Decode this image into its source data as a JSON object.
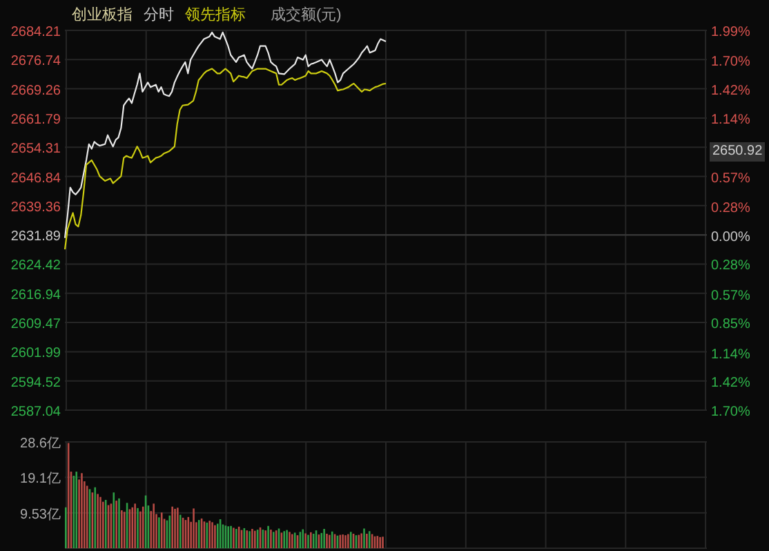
{
  "chart_data": [
    {
      "type": "line",
      "title": "创业板指",
      "subtitle": "分时",
      "grid": true,
      "tick_labels": "y",
      "categories": [
        null,
        null,
        null,
        null,
        null,
        null,
        null,
        null,
        null,
        null,
        null,
        null,
        null,
        null,
        null,
        null,
        null,
        null,
        null,
        null,
        null,
        null,
        null,
        null,
        null,
        null,
        null,
        null,
        null,
        null,
        null,
        null,
        null,
        null,
        null,
        null,
        null,
        null,
        null,
        null,
        null,
        null,
        null,
        null,
        null,
        null,
        null,
        null,
        null,
        null,
        null,
        null,
        null,
        null,
        null,
        null,
        null,
        null,
        null,
        null,
        null,
        null,
        null,
        null,
        null,
        null,
        null,
        null,
        null,
        null,
        null,
        null,
        null,
        null,
        null,
        null,
        null,
        null,
        null,
        null,
        null,
        null,
        null,
        null,
        null,
        null,
        null,
        null,
        null,
        null,
        null,
        null,
        null,
        null,
        null,
        null,
        null,
        null,
        null,
        null,
        null,
        null,
        null,
        null,
        null,
        null,
        null,
        null,
        null,
        null,
        null,
        null,
        null,
        null,
        null,
        null,
        null,
        null,
        null,
        null,
        null,
        null,
        null,
        null,
        null,
        null,
        null,
        null,
        null,
        null,
        null,
        null,
        null,
        null,
        null,
        null,
        null,
        null,
        null,
        null,
        null,
        null,
        null,
        null,
        null,
        null,
        null,
        null,
        null,
        null,
        null,
        null,
        null,
        null,
        null,
        null,
        null,
        null,
        null,
        null,
        null,
        null,
        null,
        null,
        null,
        null,
        null,
        null,
        null,
        null,
        null,
        null,
        null,
        null,
        null,
        null,
        null,
        null,
        null,
        null,
        null,
        null,
        null,
        null,
        null,
        null,
        null,
        null,
        null,
        null,
        null,
        null,
        null,
        null,
        null,
        null,
        null,
        null,
        null,
        null,
        null,
        null,
        null,
        null,
        null,
        null,
        null,
        null,
        null,
        null,
        null,
        null,
        null,
        null,
        null,
        null,
        null,
        null,
        null,
        null,
        null,
        null,
        null,
        null,
        null,
        null,
        null,
        null,
        null,
        null,
        null,
        null,
        null,
        null,
        null,
        null,
        null,
        null,
        null,
        null,
        null
      ],
      "ylim": [
        2587.04,
        2684.21
      ],
      "yticks": [
        2684.21,
        2676.74,
        2669.26,
        2661.79,
        2654.31,
        2646.84,
        2639.36,
        2631.89,
        2624.42,
        2616.94,
        2609.47,
        2601.99,
        2594.52,
        2587.04
      ],
      "y2lim": [
        -1.7,
        1.99
      ],
      "y2ticks": [
        {
          "value": 1.99,
          "label": "1.99%"
        },
        {
          "value": 1.7,
          "label": "1.70%"
        },
        {
          "value": 1.42,
          "label": "1.42%"
        },
        {
          "value": 1.14,
          "label": "1.14%"
        },
        {
          "value": 0.57,
          "label": "0.57%"
        },
        {
          "value": 0.28,
          "label": "0.28%"
        },
        {
          "value": 0,
          "label": "0.00%"
        },
        {
          "value": -0.28,
          "label": "0.28%"
        },
        {
          "value": -0.57,
          "label": "0.57%"
        },
        {
          "value": -0.85,
          "label": "0.85%"
        },
        {
          "value": -1.14,
          "label": "1.14%"
        },
        {
          "value": -1.42,
          "label": "1.42%"
        },
        {
          "value": -1.7,
          "label": "1.70%"
        }
      ],
      "ref_lines": [
        {
          "axis": "y",
          "value": 2631.89,
          "color": "#3a3a3a"
        }
      ],
      "annotations": [
        "成交额(元)",
        "2650.92"
      ],
      "series": [
        {
          "color": "#e8e8e8",
          "values": [
            2631.1,
            2636.9,
            2644.0,
            2642.8,
            2642.2,
            2643.0,
            2644.0,
            2647.5,
            2651.0,
            2655.1,
            2653.9,
            2655.7,
            2655.1,
            2654.7,
            2654.9,
            2655.1,
            2657.4,
            2655.8,
            2654.5,
            2656.2,
            2656.8,
            2659.2,
            2665.0,
            2666.0,
            2666.8,
            2665.6,
            2668.0,
            2670.3,
            2673.2,
            2668.5,
            2669.7,
            2670.9,
            2669.7,
            2670.0,
            2670.3,
            2668.5,
            2669.7,
            2667.9,
            2667.6,
            2667.4,
            2668.5,
            2670.9,
            2672.4,
            2673.8,
            2675.0,
            2676.1,
            2673.2,
            2676.7,
            2677.9,
            2679.1,
            2680.2,
            2681.1,
            2682.0,
            2682.3,
            2682.6,
            2683.7,
            2682.6,
            2682.3,
            2682.0,
            2683.7,
            2682.0,
            2680.2,
            2677.9,
            2677.0,
            2676.1,
            2677.3,
            2677.6,
            2677.9,
            2676.1,
            2675.2,
            2674.4,
            2676.1,
            2677.9,
            2680.2,
            2680.2,
            2680.2,
            2678.5,
            2676.1,
            2675.5,
            2675.0,
            2673.2,
            2673.1,
            2673.0,
            2673.7,
            2674.4,
            2675.0,
            2675.6,
            2677.3,
            2677.0,
            2676.7,
            2677.9,
            2675.0,
            2675.6,
            2675.8,
            2676.1,
            2676.4,
            2676.7,
            2675.8,
            2675.0,
            2676.7,
            2675.0,
            2673.2,
            2670.9,
            2671.5,
            2673.2,
            2673.8,
            2674.4,
            2675.0,
            2675.6,
            2676.4,
            2677.3,
            2678.5,
            2679.3,
            2680.2,
            2678.5,
            2678.8,
            2679.1,
            2680.8,
            2682.0,
            2681.7,
            2681.4,
            null,
            null,
            null,
            null,
            null,
            null,
            null,
            null,
            null,
            null,
            null,
            null,
            null,
            null,
            null,
            null,
            null,
            null,
            null,
            null,
            null,
            null,
            null,
            null,
            null,
            null,
            null,
            null,
            null,
            null,
            null,
            null,
            null,
            null,
            null,
            null,
            null,
            null,
            null,
            null,
            null,
            null,
            null,
            null,
            null,
            null,
            null,
            null,
            null,
            null,
            null,
            null,
            null,
            null,
            null,
            null,
            null,
            null,
            null,
            null,
            null,
            null,
            null,
            null,
            null,
            null,
            null,
            null,
            null,
            null,
            null,
            null,
            null,
            null,
            null,
            null,
            null,
            null,
            null,
            null,
            null,
            null,
            null,
            null,
            null,
            null,
            null,
            null,
            null,
            null,
            null,
            null,
            null,
            null,
            null,
            null,
            null,
            null,
            null,
            null,
            null,
            null,
            null,
            null,
            null,
            null,
            null,
            null,
            null,
            null,
            null,
            null,
            null,
            null,
            null,
            null,
            null,
            null,
            null,
            null
          ]
        },
        {
          "name": "领先指标",
          "color": "#cccc10",
          "values": [
            2628.2,
            2633.4,
            2635.5,
            2637.5,
            2634.6,
            2634.0,
            2636.9,
            2642.8,
            2649.8,
            2650.4,
            2651.0,
            2649.8,
            2648.6,
            2646.9,
            2646.3,
            2645.7,
            2646.0,
            2646.3,
            2645.1,
            2645.7,
            2646.3,
            2646.9,
            2651.6,
            2652.1,
            2651.8,
            2651.6,
            2653.0,
            2654.5,
            2653.3,
            2651.6,
            2651.8,
            2652.1,
            2650.4,
            2651.0,
            2651.6,
            2651.8,
            2652.1,
            2652.7,
            2653.0,
            2653.3,
            2653.9,
            2654.5,
            2660.3,
            2663.9,
            2665.0,
            2665.1,
            2665.2,
            2665.7,
            2666.2,
            2668.5,
            2671.5,
            2672.3,
            2673.2,
            2673.8,
            2674.1,
            2674.4,
            2673.8,
            2673.2,
            2673.2,
            2673.8,
            2674.4,
            2673.8,
            2673.2,
            2671.1,
            2671.8,
            2672.6,
            2672.4,
            2672.3,
            2672.0,
            2672.9,
            2673.8,
            2674.1,
            2674.4,
            2674.4,
            2674.4,
            2674.4,
            2674.1,
            2673.8,
            2673.5,
            2673.2,
            2670.3,
            2670.3,
            2670.9,
            2671.5,
            2671.8,
            2672.0,
            2671.5,
            2671.8,
            2672.0,
            2672.3,
            2672.6,
            2673.8,
            2673.2,
            2673.2,
            2673.2,
            2673.5,
            2673.8,
            2673.5,
            2673.2,
            2672.6,
            2671.5,
            2670.3,
            2668.8,
            2669.0,
            2669.1,
            2669.4,
            2669.7,
            2670.2,
            2670.6,
            2669.9,
            2669.2,
            2668.5,
            2669.1,
            2669.0,
            2668.8,
            2669.3,
            2669.7,
            2669.9,
            2670.2,
            2670.5,
            2670.6,
            null,
            null,
            null,
            null,
            null,
            null,
            null,
            null,
            null,
            null,
            null,
            null,
            null,
            null,
            null,
            null,
            null,
            null,
            null,
            null,
            null,
            null,
            null,
            null,
            null,
            null,
            null,
            null,
            null,
            null,
            null,
            null,
            null,
            null,
            null,
            null,
            null,
            null,
            null,
            null,
            null,
            null,
            null,
            null,
            null,
            null,
            null,
            null,
            null,
            null,
            null,
            null,
            null,
            null,
            null,
            null,
            null,
            null,
            null,
            null,
            null,
            null,
            null,
            null,
            null,
            null,
            null,
            null,
            null,
            null,
            null,
            null,
            null,
            null,
            null,
            null,
            null,
            null,
            null,
            null,
            null,
            null,
            null,
            null,
            null,
            null,
            null,
            null,
            null,
            null,
            null,
            null,
            null,
            null,
            null,
            null,
            null,
            null,
            null,
            null,
            null,
            null,
            null,
            null,
            null,
            null,
            null,
            null,
            null,
            null,
            null,
            null,
            null,
            null,
            null,
            null,
            null,
            null,
            null,
            null
          ]
        }
      ]
    },
    {
      "type": "bar",
      "grid": true,
      "tick_labels": "y",
      "categories": [
        null,
        null,
        null,
        null,
        null,
        null,
        null,
        null,
        null,
        null,
        null,
        null,
        null,
        null,
        null,
        null,
        null,
        null,
        null,
        null,
        null,
        null,
        null,
        null,
        null,
        null,
        null,
        null,
        null,
        null,
        null,
        null,
        null,
        null,
        null,
        null,
        null,
        null,
        null,
        null,
        null,
        null,
        null,
        null,
        null,
        null,
        null,
        null,
        null,
        null,
        null,
        null,
        null,
        null,
        null,
        null,
        null,
        null,
        null,
        null,
        null,
        null,
        null,
        null,
        null,
        null,
        null,
        null,
        null,
        null,
        null,
        null,
        null,
        null,
        null,
        null,
        null,
        null,
        null,
        null,
        null,
        null,
        null,
        null,
        null,
        null,
        null,
        null,
        null,
        null,
        null,
        null,
        null,
        null,
        null,
        null,
        null,
        null,
        null,
        null,
        null,
        null,
        null,
        null,
        null,
        null,
        null,
        null,
        null,
        null,
        null,
        null,
        null,
        null,
        null,
        null,
        null,
        null,
        null,
        null,
        null,
        null,
        null,
        null,
        null,
        null,
        null,
        null,
        null,
        null,
        null,
        null,
        null,
        null,
        null,
        null,
        null,
        null,
        null,
        null,
        null,
        null,
        null,
        null,
        null,
        null,
        null,
        null,
        null,
        null,
        null,
        null,
        null,
        null,
        null,
        null,
        null,
        null,
        null,
        null,
        null,
        null,
        null,
        null,
        null,
        null,
        null,
        null,
        null,
        null,
        null,
        null,
        null,
        null,
        null,
        null,
        null,
        null,
        null,
        null,
        null,
        null,
        null,
        null,
        null,
        null,
        null,
        null,
        null,
        null,
        null,
        null,
        null,
        null,
        null,
        null,
        null,
        null,
        null,
        null,
        null,
        null,
        null,
        null,
        null,
        null,
        null,
        null,
        null,
        null,
        null,
        null,
        null,
        null,
        null,
        null,
        null,
        null,
        null,
        null,
        null,
        null,
        null,
        null,
        null,
        null,
        null,
        null,
        null,
        null,
        null,
        null,
        null,
        null,
        null,
        null,
        null,
        null,
        null,
        null,
        null
      ],
      "ylim": [
        0,
        28.6
      ],
      "yticks": [
        {
          "value": 28.6,
          "label": "28.6亿"
        },
        {
          "value": 19.1,
          "label": "19.1亿"
        },
        {
          "value": 9.53,
          "label": "9.53亿"
        }
      ],
      "values": [
        11,
        28.3,
        20.6,
        19.5,
        20.6,
        18.5,
        20.2,
        18.0,
        16.8,
        15.9,
        15.0,
        16.4,
        14.6,
        13.8,
        12.5,
        13.0,
        11.6,
        12.0,
        15.0,
        12.8,
        13.4,
        10.2,
        9.8,
        12.2,
        10.5,
        11.0,
        12.0,
        10.8,
        9.9,
        11.2,
        14.2,
        11.5,
        10.0,
        12.0,
        9.2,
        8.3,
        9.6,
        7.9,
        7.5,
        8.8,
        11.2,
        10.6,
        10.9,
        9.0,
        8.2,
        7.6,
        8.4,
        7.1,
        10.7,
        7.0,
        7.6,
        8.0,
        7.2,
        6.9,
        7.4,
        7.0,
        6.2,
        6.6,
        7.8,
        6.4,
        6.1,
        5.9,
        6.0,
        5.5,
        5.2,
        5.8,
        4.9,
        5.4,
        4.8,
        4.6,
        5.2,
        4.7,
        5.0,
        5.6,
        5.0,
        4.8,
        6.0,
        5.0,
        4.4,
        4.8,
        5.3,
        4.2,
        4.6,
        4.9,
        4.4,
        3.8,
        4.2,
        3.5,
        4.4,
        5.1,
        4.0,
        3.6,
        4.3,
        3.9,
        4.8,
        3.7,
        4.1,
        5.2,
        3.9,
        3.6,
        4.5,
        3.8,
        3.4,
        3.6,
        3.7,
        3.5,
        3.8,
        4.4,
        3.9,
        3.5,
        3.6,
        4.0,
        5.3,
        3.9,
        4.6,
        3.8,
        3.2,
        3.3,
        3.0,
        3.1,
        null,
        null,
        null,
        null,
        null,
        null,
        null,
        null,
        null,
        null,
        null,
        null,
        null,
        null,
        null,
        null,
        null,
        null,
        null,
        null,
        null,
        null,
        null,
        null,
        null,
        null,
        null,
        null,
        null,
        null,
        null,
        null,
        null,
        null,
        null,
        null,
        null,
        null,
        null,
        null,
        null,
        null,
        null,
        null,
        null,
        null,
        null,
        null,
        null,
        null,
        null,
        null,
        null,
        null,
        null,
        null,
        null,
        null,
        null,
        null,
        null,
        null,
        null,
        null,
        null,
        null,
        null,
        null,
        null,
        null,
        null,
        null,
        null,
        null,
        null,
        null,
        null,
        null,
        null,
        null,
        null,
        null,
        null,
        null,
        null,
        null,
        null,
        null,
        null,
        null,
        null,
        null,
        null,
        null,
        null,
        null,
        null,
        null,
        null,
        null,
        null,
        null,
        null,
        null,
        null,
        null,
        null,
        null,
        null,
        null,
        null,
        null,
        null,
        null,
        null,
        null,
        null,
        null,
        null,
        null,
        null
      ],
      "colors": [
        "#2e9e46",
        "#b84b45",
        "#b84b45",
        "#2e9e46",
        "#2e9e46",
        "#b84b45",
        "#b84b45",
        "#b84b45",
        "#b84b45",
        "#2e9e46",
        "#b84b45",
        "#2e9e46",
        "#b84b45",
        "#b84b45",
        "#b84b45",
        "#2e9e46",
        "#b84b45",
        "#b84b45",
        "#2e9e46",
        "#b84b45",
        "#2e9e46",
        "#b84b45",
        "#b84b45",
        "#2e9e46",
        "#b84b45",
        "#b84b45",
        "#b84b45",
        "#2e9e46",
        "#b84b45",
        "#b84b45",
        "#2e9e46",
        "#2e9e46",
        "#b84b45",
        "#b84b45",
        "#b84b45",
        "#2e9e46",
        "#b84b45",
        "#b84b45",
        "#2e9e46",
        "#2e9e46",
        "#b84b45",
        "#b84b45",
        "#b84b45",
        "#2e9e46",
        "#b84b45",
        "#b84b45",
        "#b84b45",
        "#b84b45",
        "#b84b45",
        "#b84b45",
        "#2e9e46",
        "#b84b45",
        "#b84b45",
        "#2e9e46",
        "#b84b45",
        "#b84b45",
        "#b84b45",
        "#2e9e46",
        "#2e9e46",
        "#2e9e46",
        "#2e9e46",
        "#2e9e46",
        "#2e9e46",
        "#b84b45",
        "#2e9e46",
        "#b84b45",
        "#b84b45",
        "#2e9e46",
        "#b84b45",
        "#2e9e46",
        "#b84b45",
        "#b84b45",
        "#2e9e46",
        "#b84b45",
        "#2e9e46",
        "#b84b45",
        "#2e9e46",
        "#b84b45",
        "#2e9e46",
        "#b84b45",
        "#2e9e46",
        "#b84b45",
        "#2e9e46",
        "#2e9e46",
        "#b84b45",
        "#b84b45",
        "#2e9e46",
        "#b84b45",
        "#2e9e46",
        "#2e9e46",
        "#b84b45",
        "#2e9e46",
        "#b84b45",
        "#2e9e46",
        "#2e9e46",
        "#b84b45",
        "#2e9e46",
        "#2e9e46",
        "#b84b45",
        "#b84b45",
        "#2e9e46",
        "#b84b45",
        "#2e9e46",
        "#b84b45",
        "#b84b45",
        "#b84b45",
        "#b84b45",
        "#2e9e46",
        "#b84b45",
        "#2e9e46",
        "#b84b45",
        "#b84b45",
        "#2e9e46",
        "#b84b45",
        "#2e9e46",
        "#b84b45",
        "#b84b45",
        "#b84b45",
        "#b84b45",
        "#b84b45",
        null,
        null,
        null,
        null,
        null,
        null,
        null,
        null,
        null,
        null,
        null,
        null,
        null,
        null,
        null,
        null,
        null,
        null,
        null,
        null,
        null,
        null,
        null,
        null,
        null,
        null,
        null,
        null,
        null,
        null,
        null,
        null,
        null,
        null,
        null,
        null,
        null,
        null,
        null,
        null,
        null,
        null,
        null,
        null,
        null,
        null,
        null,
        null,
        null,
        null,
        null,
        null,
        null,
        null,
        null,
        null,
        null,
        null,
        null,
        null,
        null,
        null,
        null,
        null,
        null,
        null,
        null,
        null,
        null,
        null,
        null,
        null,
        null,
        null,
        null,
        null,
        null,
        null,
        null,
        null,
        null,
        null,
        null,
        null,
        null,
        null,
        null,
        null,
        null,
        null,
        null,
        null,
        null,
        null,
        null,
        null,
        null,
        null,
        null,
        null,
        null,
        null,
        null,
        null,
        null,
        null,
        null,
        null,
        null,
        null,
        null,
        null,
        null,
        null,
        null,
        null,
        null,
        null,
        null,
        null,
        null
      ]
    }
  ]
}
